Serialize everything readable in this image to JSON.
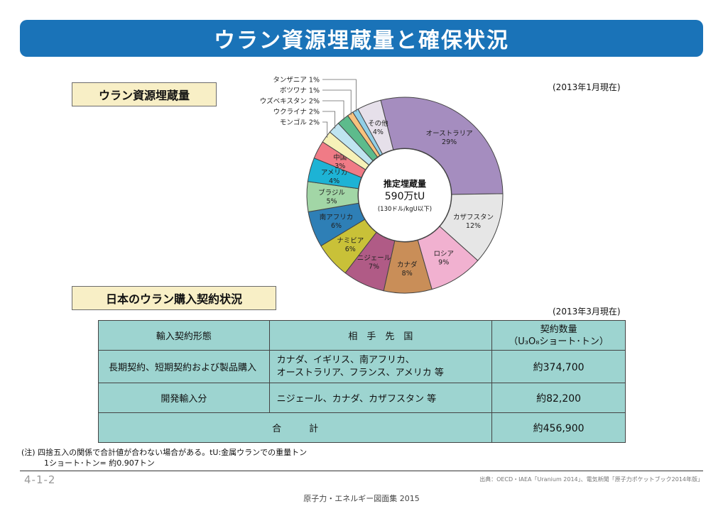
{
  "title": "ウラン資源埋蔵量と確保状況",
  "section1": {
    "label": "ウラン資源埋蔵量",
    "date_note": "(2013年1月現在)"
  },
  "chart_data": {
    "type": "pie",
    "title": "",
    "center_text": [
      "推定埋蔵量",
      "590万tU",
      "(130ドル/kgU以下)"
    ],
    "unit": "%",
    "slices": [
      {
        "label": "オーストラリア",
        "value": 29,
        "color": "#a58dbf"
      },
      {
        "label": "カザフスタン",
        "value": 12,
        "color": "#e6e6e6"
      },
      {
        "label": "ロシア",
        "value": 9,
        "color": "#f1b1d0"
      },
      {
        "label": "カナダ",
        "value": 8,
        "color": "#c98e58"
      },
      {
        "label": "ニジェール",
        "value": 7,
        "color": "#b05b86"
      },
      {
        "label": "ナミビア",
        "value": 6,
        "color": "#c9c138"
      },
      {
        "label": "南アフリカ",
        "value": 6,
        "color": "#2e7fb6"
      },
      {
        "label": "ブラジル",
        "value": 5,
        "color": "#a2d6a6"
      },
      {
        "label": "アメリカ",
        "value": 4,
        "color": "#1db3d5"
      },
      {
        "label": "中国",
        "value": 3,
        "color": "#f07b86"
      },
      {
        "label": "モンゴル",
        "value": 2,
        "color": "#f6f1b8"
      },
      {
        "label": "ウクライナ",
        "value": 2,
        "color": "#bfe4f0"
      },
      {
        "label": "ウズベキスタン",
        "value": 2,
        "color": "#5dbb8c"
      },
      {
        "label": "ボツワナ",
        "value": 1,
        "color": "#f8c27d"
      },
      {
        "label": "タンザニア",
        "value": 1,
        "color": "#91cfe6"
      },
      {
        "label": "その他",
        "value": 4,
        "color": "#e6e0ea"
      }
    ]
  },
  "section2": {
    "label": "日本のウラン購入契約状況",
    "date_note": "(2013年3月現在)"
  },
  "table": {
    "headers": {
      "type": "輸入契約形態",
      "partner": "相　手　先　国",
      "amount_line1": "契約数量",
      "amount_line2": "（U₃O₈ショート･トン）"
    },
    "rows": [
      {
        "type": "長期契約、短期契約および製品購入",
        "partner_line1": "カナダ、イギリス、南アフリカ、",
        "partner_line2": "オーストラリア、フランス、アメリカ 等",
        "amount": "約374,700"
      },
      {
        "type": "開発輸入分",
        "partner_line1": "ニジェール、カナダ、カザフスタン 等",
        "partner_line2": "",
        "amount": "約82,200"
      }
    ],
    "total_label": "合　　　計",
    "total_amount": "約456,900"
  },
  "notes": {
    "line1": "(注) 四捨五入の関係で合計値が合わない場合がある。tU:金属ウランでの重量トン",
    "line2": "1ショート･トン= 約0.907トン"
  },
  "footer": {
    "page": "4-1-2",
    "source": "出典：OECD・IAEA「Uranium 2014」、電気新聞「原子力ポケットブック2014年版」",
    "book": "原子力・エネルギー図面集 2015"
  }
}
